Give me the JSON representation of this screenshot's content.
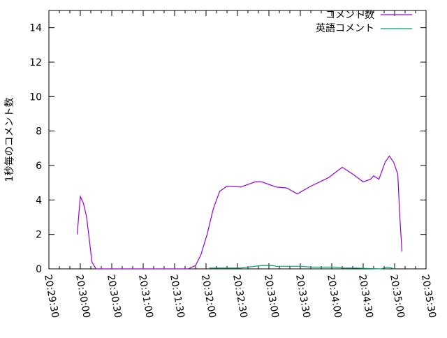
{
  "chart_data": {
    "type": "line",
    "title": "",
    "xlabel": "",
    "ylabel": "1秒毎のコメント数",
    "xlim": [
      "20:29:30",
      "20:35:30"
    ],
    "ylim": [
      0,
      15
    ],
    "x_ticks": [
      "20:29:30",
      "20:30:00",
      "20:30:30",
      "20:31:00",
      "20:31:30",
      "20:32:00",
      "20:32:30",
      "20:33:00",
      "20:33:30",
      "20:34:00",
      "20:34:30",
      "20:35:00",
      "20:35:30"
    ],
    "y_ticks": [
      "0",
      "2",
      "4",
      "6",
      "8",
      "10",
      "12",
      "14"
    ],
    "grid": false,
    "legend_position": "top-right",
    "series": [
      {
        "name": "コメント数",
        "color": "#9400d3",
        "points": [
          [
            "20:29:57",
            2.0
          ],
          [
            "20:30:00",
            4.2
          ],
          [
            "20:30:03",
            3.8
          ],
          [
            "20:30:06",
            3.0
          ],
          [
            "20:30:09",
            1.5
          ],
          [
            "20:30:11",
            0.4
          ],
          [
            "20:30:15",
            0
          ],
          [
            "20:31:43",
            0
          ],
          [
            "20:31:50",
            0.2
          ],
          [
            "20:31:55",
            0.8
          ],
          [
            "20:32:01",
            2.0
          ],
          [
            "20:32:07",
            3.5
          ],
          [
            "20:32:13",
            4.5
          ],
          [
            "20:32:20",
            4.8
          ],
          [
            "20:32:33",
            4.75
          ],
          [
            "20:32:47",
            5.05
          ],
          [
            "20:32:53",
            5.05
          ],
          [
            "20:33:07",
            4.75
          ],
          [
            "20:33:17",
            4.7
          ],
          [
            "20:33:27",
            4.35
          ],
          [
            "20:33:40",
            4.8
          ],
          [
            "20:33:57",
            5.3
          ],
          [
            "20:34:10",
            5.9
          ],
          [
            "20:34:20",
            5.5
          ],
          [
            "20:34:30",
            5.05
          ],
          [
            "20:34:37",
            5.2
          ],
          [
            "20:34:40",
            5.4
          ],
          [
            "20:34:45",
            5.2
          ],
          [
            "20:34:51",
            6.2
          ],
          [
            "20:34:55",
            6.55
          ],
          [
            "20:34:59",
            6.2
          ],
          [
            "20:35:03",
            5.5
          ],
          [
            "20:35:05",
            3.0
          ],
          [
            "20:35:07",
            1.0
          ]
        ]
      },
      {
        "name": "英語コメント",
        "color": "#009e73",
        "points": [
          [
            "20:32:03",
            0.05
          ],
          [
            "20:32:33",
            0.05
          ],
          [
            "20:32:40",
            0.1
          ],
          [
            "20:32:53",
            0.2
          ],
          [
            "20:33:03",
            0.2
          ],
          [
            "20:33:07",
            0.15
          ],
          [
            "20:33:30",
            0.15
          ],
          [
            "20:33:40",
            0.1
          ],
          [
            "20:34:03",
            0.1
          ],
          [
            "20:34:10",
            0.05
          ],
          [
            "20:34:20",
            0.05
          ],
          [
            "20:34:47",
            0
          ],
          [
            "20:34:50",
            0.05
          ],
          [
            "20:34:53",
            0.1
          ],
          [
            "20:34:57",
            0.05
          ],
          [
            "20:35:00",
            0
          ]
        ]
      }
    ]
  }
}
